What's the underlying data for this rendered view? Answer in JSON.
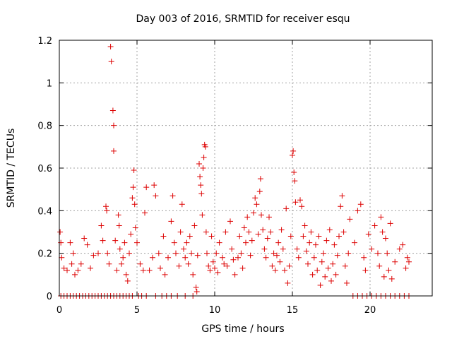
{
  "chart_data": {
    "type": "scatter",
    "title": "Day 003 of 2016, SRMTID for receiver esqu",
    "xlabel": "GPS time / hours",
    "ylabel": "SRMTID / TECUs",
    "xlim": [
      0,
      24
    ],
    "ylim": [
      0,
      1.2
    ],
    "x_ticks": [
      0,
      5,
      10,
      15,
      20
    ],
    "x_tick_labels": [
      "0",
      "5",
      "10",
      "15",
      "20"
    ],
    "y_ticks": [
      0,
      0.2,
      0.4,
      0.6,
      0.8,
      1.0,
      1.2
    ],
    "y_tick_labels": [
      "0",
      "0.2",
      "0.4",
      "0.6",
      "0.8",
      "1",
      "1.2"
    ],
    "grid": true,
    "series": [
      {
        "name": "SRMTID",
        "color": "#dd0000",
        "marker": "plus",
        "points": [
          [
            0.1,
            0.0
          ],
          [
            0.3,
            0.0
          ],
          [
            0.5,
            0.0
          ],
          [
            0.7,
            0.0
          ],
          [
            0.9,
            0.0
          ],
          [
            1.1,
            0.0
          ],
          [
            1.3,
            0.0
          ],
          [
            1.5,
            0.0
          ],
          [
            1.7,
            0.0
          ],
          [
            1.9,
            0.0
          ],
          [
            2.1,
            0.0
          ],
          [
            2.3,
            0.0
          ],
          [
            2.5,
            0.0
          ],
          [
            2.7,
            0.0
          ],
          [
            2.9,
            0.0
          ],
          [
            3.1,
            0.0
          ],
          [
            3.3,
            0.0
          ],
          [
            3.5,
            0.0
          ],
          [
            3.7,
            0.0
          ],
          [
            3.9,
            0.0
          ],
          [
            4.1,
            0.0
          ],
          [
            4.3,
            0.0
          ],
          [
            4.5,
            0.0
          ],
          [
            4.7,
            0.0
          ],
          [
            5.1,
            0.0
          ],
          [
            5.3,
            0.0
          ],
          [
            5.6,
            0.0
          ],
          [
            6.2,
            0.0
          ],
          [
            6.6,
            0.0
          ],
          [
            6.9,
            0.0
          ],
          [
            7.2,
            0.0
          ],
          [
            7.6,
            0.0
          ],
          [
            8.1,
            0.0
          ],
          [
            8.6,
            0.0
          ],
          [
            18.9,
            0.0
          ],
          [
            19.2,
            0.0
          ],
          [
            19.5,
            0.0
          ],
          [
            19.8,
            0.0
          ],
          [
            20.1,
            0.0
          ],
          [
            20.4,
            0.0
          ],
          [
            20.7,
            0.0
          ],
          [
            21.0,
            0.0
          ],
          [
            21.3,
            0.0
          ],
          [
            21.6,
            0.0
          ],
          [
            21.9,
            0.0
          ],
          [
            22.2,
            0.0
          ],
          [
            22.5,
            0.0
          ],
          [
            0.05,
            0.3
          ],
          [
            0.1,
            0.25
          ],
          [
            0.15,
            0.18
          ],
          [
            0.3,
            0.13
          ],
          [
            0.5,
            0.12
          ],
          [
            0.7,
            0.25
          ],
          [
            0.8,
            0.15
          ],
          [
            0.9,
            0.2
          ],
          [
            1.0,
            0.1
          ],
          [
            1.2,
            0.12
          ],
          [
            1.4,
            0.15
          ],
          [
            1.6,
            0.27
          ],
          [
            1.8,
            0.24
          ],
          [
            2.0,
            0.13
          ],
          [
            2.2,
            0.19
          ],
          [
            2.5,
            0.2
          ],
          [
            2.7,
            0.33
          ],
          [
            2.8,
            0.26
          ],
          [
            3.0,
            0.42
          ],
          [
            3.05,
            0.4
          ],
          [
            3.1,
            0.2
          ],
          [
            3.2,
            0.15
          ],
          [
            3.3,
            1.17
          ],
          [
            3.35,
            1.1
          ],
          [
            3.45,
            0.87
          ],
          [
            3.5,
            0.8
          ],
          [
            3.5,
            0.68
          ],
          [
            3.6,
            0.26
          ],
          [
            3.7,
            0.12
          ],
          [
            3.8,
            0.38
          ],
          [
            3.85,
            0.33
          ],
          [
            3.9,
            0.22
          ],
          [
            4.0,
            0.15
          ],
          [
            4.1,
            0.18
          ],
          [
            4.2,
            0.25
          ],
          [
            4.3,
            0.1
          ],
          [
            4.4,
            0.07
          ],
          [
            4.5,
            0.2
          ],
          [
            4.6,
            0.29
          ],
          [
            4.7,
            0.46
          ],
          [
            4.75,
            0.51
          ],
          [
            4.8,
            0.59
          ],
          [
            4.85,
            0.43
          ],
          [
            4.9,
            0.32
          ],
          [
            5.0,
            0.25
          ],
          [
            5.2,
            0.15
          ],
          [
            5.4,
            0.12
          ],
          [
            5.5,
            0.39
          ],
          [
            5.6,
            0.51
          ],
          [
            5.8,
            0.12
          ],
          [
            6.0,
            0.18
          ],
          [
            6.1,
            0.52
          ],
          [
            6.2,
            0.47
          ],
          [
            6.4,
            0.2
          ],
          [
            6.5,
            0.13
          ],
          [
            6.7,
            0.28
          ],
          [
            6.8,
            0.1
          ],
          [
            7.0,
            0.18
          ],
          [
            7.2,
            0.35
          ],
          [
            7.3,
            0.47
          ],
          [
            7.4,
            0.25
          ],
          [
            7.5,
            0.2
          ],
          [
            7.7,
            0.14
          ],
          [
            7.8,
            0.3
          ],
          [
            7.9,
            0.43
          ],
          [
            8.0,
            0.22
          ],
          [
            8.1,
            0.18
          ],
          [
            8.2,
            0.25
          ],
          [
            8.3,
            0.15
          ],
          [
            8.4,
            0.28
          ],
          [
            8.5,
            0.2
          ],
          [
            8.6,
            0.1
          ],
          [
            8.7,
            0.33
          ],
          [
            8.8,
            0.04
          ],
          [
            8.85,
            0.02
          ],
          [
            8.9,
            0.19
          ],
          [
            9.0,
            0.62
          ],
          [
            9.05,
            0.56
          ],
          [
            9.1,
            0.52
          ],
          [
            9.15,
            0.48
          ],
          [
            9.2,
            0.38
          ],
          [
            9.25,
            0.6
          ],
          [
            9.3,
            0.65
          ],
          [
            9.35,
            0.71
          ],
          [
            9.4,
            0.7
          ],
          [
            9.45,
            0.3
          ],
          [
            9.5,
            0.2
          ],
          [
            9.6,
            0.14
          ],
          [
            9.7,
            0.12
          ],
          [
            9.8,
            0.28
          ],
          [
            9.9,
            0.16
          ],
          [
            10.0,
            0.13
          ],
          [
            10.1,
            0.2
          ],
          [
            10.2,
            0.11
          ],
          [
            10.3,
            0.25
          ],
          [
            10.5,
            0.18
          ],
          [
            10.6,
            0.15
          ],
          [
            10.7,
            0.3
          ],
          [
            10.8,
            0.14
          ],
          [
            11.0,
            0.35
          ],
          [
            11.1,
            0.22
          ],
          [
            11.2,
            0.17
          ],
          [
            11.3,
            0.1
          ],
          [
            11.5,
            0.18
          ],
          [
            11.6,
            0.28
          ],
          [
            11.7,
            0.2
          ],
          [
            11.8,
            0.13
          ],
          [
            11.9,
            0.32
          ],
          [
            12.0,
            0.25
          ],
          [
            12.1,
            0.37
          ],
          [
            12.2,
            0.3
          ],
          [
            12.3,
            0.19
          ],
          [
            12.4,
            0.26
          ],
          [
            12.5,
            0.39
          ],
          [
            12.6,
            0.46
          ],
          [
            12.7,
            0.43
          ],
          [
            12.8,
            0.29
          ],
          [
            12.9,
            0.49
          ],
          [
            12.95,
            0.55
          ],
          [
            13.0,
            0.38
          ],
          [
            13.1,
            0.31
          ],
          [
            13.2,
            0.22
          ],
          [
            13.3,
            0.18
          ],
          [
            13.4,
            0.27
          ],
          [
            13.5,
            0.37
          ],
          [
            13.6,
            0.3
          ],
          [
            13.7,
            0.14
          ],
          [
            13.8,
            0.2
          ],
          [
            13.9,
            0.12
          ],
          [
            14.0,
            0.19
          ],
          [
            14.1,
            0.25
          ],
          [
            14.2,
            0.16
          ],
          [
            14.3,
            0.31
          ],
          [
            14.4,
            0.22
          ],
          [
            14.5,
            0.12
          ],
          [
            14.6,
            0.41
          ],
          [
            14.7,
            0.06
          ],
          [
            14.8,
            0.14
          ],
          [
            14.9,
            0.28
          ],
          [
            15.0,
            0.66
          ],
          [
            15.05,
            0.68
          ],
          [
            15.1,
            0.58
          ],
          [
            15.15,
            0.54
          ],
          [
            15.2,
            0.44
          ],
          [
            15.3,
            0.22
          ],
          [
            15.4,
            0.18
          ],
          [
            15.5,
            0.45
          ],
          [
            15.6,
            0.42
          ],
          [
            15.7,
            0.28
          ],
          [
            15.8,
            0.33
          ],
          [
            15.9,
            0.21
          ],
          [
            16.0,
            0.15
          ],
          [
            16.1,
            0.25
          ],
          [
            16.2,
            0.3
          ],
          [
            16.3,
            0.1
          ],
          [
            16.4,
            0.18
          ],
          [
            16.5,
            0.24
          ],
          [
            16.6,
            0.12
          ],
          [
            16.7,
            0.28
          ],
          [
            16.8,
            0.05
          ],
          [
            16.9,
            0.16
          ],
          [
            17.0,
            0.2
          ],
          [
            17.1,
            0.09
          ],
          [
            17.2,
            0.26
          ],
          [
            17.3,
            0.13
          ],
          [
            17.4,
            0.31
          ],
          [
            17.5,
            0.07
          ],
          [
            17.6,
            0.15
          ],
          [
            17.7,
            0.24
          ],
          [
            17.8,
            0.1
          ],
          [
            17.9,
            0.19
          ],
          [
            18.0,
            0.28
          ],
          [
            18.1,
            0.42
          ],
          [
            18.2,
            0.47
          ],
          [
            18.3,
            0.3
          ],
          [
            18.4,
            0.14
          ],
          [
            18.5,
            0.06
          ],
          [
            18.6,
            0.2
          ],
          [
            18.7,
            0.36
          ],
          [
            19.0,
            0.25
          ],
          [
            19.2,
            0.4
          ],
          [
            19.4,
            0.43
          ],
          [
            19.6,
            0.18
          ],
          [
            19.7,
            0.12
          ],
          [
            19.9,
            0.29
          ],
          [
            20.1,
            0.22
          ],
          [
            20.3,
            0.33
          ],
          [
            20.5,
            0.2
          ],
          [
            20.6,
            0.14
          ],
          [
            20.7,
            0.37
          ],
          [
            20.8,
            0.3
          ],
          [
            20.9,
            0.09
          ],
          [
            21.0,
            0.27
          ],
          [
            21.1,
            0.2
          ],
          [
            21.2,
            0.12
          ],
          [
            21.3,
            0.34
          ],
          [
            21.4,
            0.08
          ],
          [
            21.6,
            0.16
          ],
          [
            21.9,
            0.22
          ],
          [
            22.1,
            0.24
          ],
          [
            22.3,
            0.13
          ],
          [
            22.4,
            0.18
          ],
          [
            22.5,
            0.16
          ]
        ]
      }
    ]
  }
}
